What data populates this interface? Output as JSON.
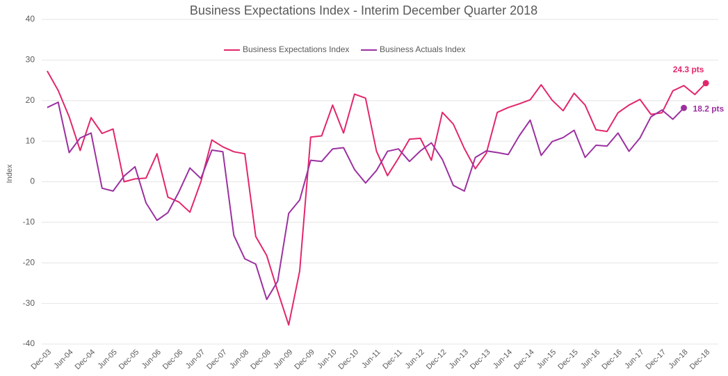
{
  "chart_data": {
    "type": "line",
    "title": "Business Expectations Index - Interim December Quarter 2018",
    "y_label": "Index",
    "categories": [
      "Dec-03",
      null,
      "Jun-04",
      null,
      "Dec-04",
      null,
      "Jun-05",
      null,
      "Dec-05",
      null,
      "Jun-06",
      null,
      "Dec-06",
      null,
      "Jun-07",
      null,
      "Dec-07",
      null,
      "Jun-08",
      null,
      "Dec-08",
      null,
      "Jun-09",
      null,
      "Dec-09",
      null,
      "Jun-10",
      null,
      "Dec-10",
      null,
      "Jun-11",
      null,
      "Dec-11",
      null,
      "Jun-12",
      null,
      "Dec-12",
      null,
      "Jun-13",
      null,
      "Dec-13",
      null,
      "Jun-14",
      null,
      "Dec-14",
      null,
      "Jun-15",
      null,
      "Dec-15",
      null,
      "Jun-16",
      null,
      "Dec-16",
      null,
      "Jun-17",
      null,
      "Dec-17",
      null,
      "Jun-18",
      null,
      "Dec-18"
    ],
    "series": [
      {
        "name": "Business Expectations Index",
        "color": "#e2266b",
        "end_label": "24.3 pts",
        "values": [
          27.3,
          22.5,
          16,
          7.7,
          15.8,
          11.9,
          13,
          0,
          0.7,
          0.9,
          6.9,
          -3.8,
          -5,
          -7.5,
          0,
          10.3,
          8.6,
          7.4,
          6.9,
          -13.5,
          -18.2,
          -27,
          -35.3,
          -22,
          11,
          11.3,
          18.9,
          12,
          21.6,
          20.6,
          7.5,
          1.5,
          5.8,
          10.5,
          10.7,
          5.3,
          17.1,
          14.2,
          8.2,
          3.2,
          7,
          17.1,
          18.3,
          19.2,
          20.2,
          23.9,
          20.1,
          17.5,
          21.8,
          18.9,
          12.8,
          12.4,
          17,
          18.9,
          20.3,
          16.6,
          17,
          22.4,
          23.7,
          21.5,
          24.3
        ]
      },
      {
        "name": "Business Actuals Index",
        "color": "#9b30a0",
        "end_label": "18.2 pts",
        "values": [
          18.3,
          19.6,
          7.2,
          10.8,
          12,
          -1.6,
          -2.3,
          1.4,
          3.7,
          -5.2,
          -9.5,
          -7.6,
          -2.5,
          3.4,
          0.8,
          7.8,
          7.4,
          -13.2,
          -19,
          -20.3,
          -29,
          -24.5,
          -7.8,
          -4.5,
          5.3,
          5,
          8.1,
          8.4,
          3,
          -0.3,
          2.8,
          7.5,
          8.1,
          5,
          7.6,
          9.6,
          5.5,
          -0.9,
          -2.3,
          6,
          7.6,
          7.2,
          6.7,
          11.3,
          15.2,
          6.5,
          9.9,
          10.9,
          12.7,
          6,
          9,
          8.8,
          12,
          7.5,
          10.8,
          16,
          17.7,
          15.4,
          18.2,
          null,
          null
        ]
      }
    ],
    "ylim": [
      -40,
      40
    ],
    "yticks": [
      -40,
      -30,
      -20,
      -10,
      0,
      10,
      20,
      30,
      40
    ],
    "grid": true,
    "legend": "top"
  }
}
